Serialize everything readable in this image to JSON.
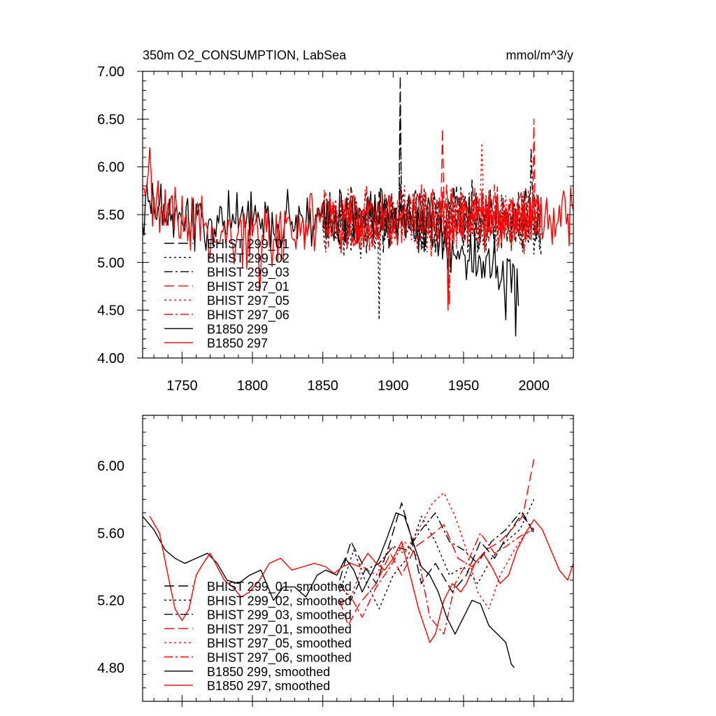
{
  "chart_data": [
    {
      "type": "line",
      "title": "350m O2_CONSUMPTION, LabSea",
      "units": "mmol/m^3/y",
      "xlim": [
        1722,
        2028
      ],
      "ylim": [
        4.0,
        7.0
      ],
      "x_ticks": [
        1750,
        1800,
        1850,
        1900,
        1950,
        2000
      ],
      "x_tick_labels": [
        "1750",
        "1800",
        "1850",
        "1900",
        "1950",
        "2000"
      ],
      "y_ticks": [
        4.0,
        4.5,
        5.0,
        5.5,
        6.0,
        6.5,
        7.0
      ],
      "y_tick_labels": [
        "4.00",
        "4.50",
        "5.00",
        "5.50",
        "6.00",
        "6.50",
        "7.00"
      ],
      "legend_position": "lower-left",
      "series": [
        {
          "name": "BHIST 299_01",
          "color": "#000000",
          "dash": "long",
          "x_start": 1850,
          "x_end": 2005,
          "mean": 5.45,
          "amp": 0.32,
          "peaks": [
            [
              1905,
              6.95
            ]
          ]
        },
        {
          "name": "BHIST 299_02",
          "color": "#000000",
          "dash": "short",
          "x_start": 1850,
          "x_end": 2005,
          "mean": 5.4,
          "amp": 0.32,
          "peaks": [
            [
              1890,
              4.4
            ],
            [
              1905,
              6.65
            ]
          ]
        },
        {
          "name": "BHIST 299_03",
          "color": "#000000",
          "dash": "dashdot",
          "x_start": 1850,
          "x_end": 2005,
          "mean": 5.45,
          "amp": 0.3,
          "peaks": [
            [
              1998,
              6.2
            ]
          ]
        },
        {
          "name": "BHIST 297_01",
          "color": "#ff0000",
          "dash": "long",
          "x_start": 1850,
          "x_end": 2005,
          "mean": 5.5,
          "amp": 0.32,
          "peaks": [
            [
              2000,
              6.5
            ],
            [
              1935,
              6.4
            ]
          ]
        },
        {
          "name": "BHIST 297_05",
          "color": "#ff0000",
          "dash": "short",
          "x_start": 1850,
          "x_end": 2005,
          "mean": 5.45,
          "amp": 0.3,
          "peaks": [
            [
              1963,
              6.25
            ]
          ]
        },
        {
          "name": "BHIST 297_06",
          "color": "#ff0000",
          "dash": "dashdot",
          "x_start": 1850,
          "x_end": 2005,
          "mean": 5.45,
          "amp": 0.3,
          "peaks": [
            [
              1940,
              4.55
            ]
          ]
        },
        {
          "name": "B1850 299",
          "color": "#000000",
          "dash": "solid",
          "x_start": 1722,
          "x_end": 1989,
          "mean": 5.45,
          "amp": 0.3,
          "trend": [
            [
              1722,
              5.55
            ],
            [
              1800,
              5.4
            ],
            [
              1900,
              5.55
            ],
            [
              1950,
              5.1
            ],
            [
              1989,
              4.9
            ]
          ],
          "peaks": [
            [
              1987,
              4.23
            ],
            [
              1980,
              4.4
            ]
          ]
        },
        {
          "name": "B1850 297",
          "color": "#ff0000",
          "dash": "solid",
          "x_start": 1722,
          "x_end": 2028,
          "mean": 5.45,
          "amp": 0.3,
          "trend": [
            [
              1722,
              5.75
            ],
            [
              1780,
              5.2
            ],
            [
              1850,
              5.4
            ],
            [
              1950,
              5.45
            ],
            [
              2028,
              5.5
            ]
          ],
          "peaks": [
            [
              1727,
              6.2
            ],
            [
              1805,
              4.7
            ],
            [
              1939,
              4.5
            ]
          ]
        }
      ]
    },
    {
      "type": "line",
      "title": "",
      "units": "",
      "xlim": [
        1722,
        2028
      ],
      "ylim": [
        4.6,
        6.3
      ],
      "x_ticks": [
        1750,
        1800,
        1850,
        1900,
        1950,
        2000
      ],
      "x_tick_labels": [
        "",
        "",
        "",
        "",
        "",
        ""
      ],
      "y_ticks": [
        4.8,
        5.2,
        5.6,
        6.0
      ],
      "y_tick_labels": [
        "4.80",
        "5.20",
        "5.60",
        "6.00"
      ],
      "legend_position": "lower-left",
      "series": [
        {
          "name": "BHIST 299_01, smoothed",
          "color": "#000000",
          "dash": "long",
          "points": [
            [
              1862,
              5.32
            ],
            [
              1870,
              5.55
            ],
            [
              1878,
              5.42
            ],
            [
              1888,
              5.3
            ],
            [
              1898,
              5.55
            ],
            [
              1906,
              5.78
            ],
            [
              1912,
              5.6
            ],
            [
              1920,
              5.3
            ],
            [
              1930,
              5.42
            ],
            [
              1942,
              5.25
            ],
            [
              1952,
              5.35
            ],
            [
              1962,
              5.55
            ],
            [
              1972,
              5.45
            ],
            [
              1982,
              5.6
            ],
            [
              1992,
              5.72
            ],
            [
              2000,
              5.6
            ]
          ]
        },
        {
          "name": "BHIST 299_02, smoothed",
          "color": "#000000",
          "dash": "short",
          "points": [
            [
              1862,
              5.25
            ],
            [
              1872,
              5.5
            ],
            [
              1880,
              5.32
            ],
            [
              1890,
              5.15
            ],
            [
              1900,
              5.35
            ],
            [
              1910,
              5.45
            ],
            [
              1920,
              5.7
            ],
            [
              1930,
              5.55
            ],
            [
              1940,
              5.35
            ],
            [
              1950,
              5.4
            ],
            [
              1960,
              5.3
            ],
            [
              1970,
              5.45
            ],
            [
              1980,
              5.55
            ],
            [
              1990,
              5.62
            ],
            [
              2000,
              5.8
            ]
          ]
        },
        {
          "name": "BHIST 299_03, smoothed",
          "color": "#000000",
          "dash": "dashdot",
          "points": [
            [
              1862,
              5.3
            ],
            [
              1870,
              5.2
            ],
            [
              1880,
              5.38
            ],
            [
              1890,
              5.42
            ],
            [
              1900,
              5.52
            ],
            [
              1910,
              5.5
            ],
            [
              1920,
              5.62
            ],
            [
              1930,
              5.72
            ],
            [
              1940,
              5.55
            ],
            [
              1950,
              5.5
            ],
            [
              1960,
              5.42
            ],
            [
              1970,
              5.55
            ],
            [
              1980,
              5.62
            ],
            [
              1990,
              5.72
            ],
            [
              2000,
              5.62
            ]
          ]
        },
        {
          "name": "BHIST 297_01, smoothed",
          "color": "#ff0000",
          "dash": "long",
          "points": [
            [
              1862,
              5.2
            ],
            [
              1868,
              5.05
            ],
            [
              1876,
              5.18
            ],
            [
              1888,
              5.3
            ],
            [
              1898,
              5.48
            ],
            [
              1906,
              5.35
            ],
            [
              1916,
              5.52
            ],
            [
              1926,
              5.58
            ],
            [
              1936,
              5.65
            ],
            [
              1946,
              5.45
            ],
            [
              1956,
              5.4
            ],
            [
              1966,
              5.5
            ],
            [
              1976,
              5.55
            ],
            [
              1984,
              5.62
            ],
            [
              1992,
              5.7
            ],
            [
              2000,
              6.04
            ]
          ]
        },
        {
          "name": "BHIST 297_05, smoothed",
          "color": "#ff0000",
          "dash": "short",
          "points": [
            [
              1862,
              5.28
            ],
            [
              1870,
              5.22
            ],
            [
              1878,
              5.4
            ],
            [
              1888,
              5.35
            ],
            [
              1898,
              5.52
            ],
            [
              1908,
              5.48
            ],
            [
              1918,
              5.62
            ],
            [
              1928,
              5.78
            ],
            [
              1936,
              5.84
            ],
            [
              1944,
              5.7
            ],
            [
              1952,
              5.5
            ],
            [
              1960,
              5.25
            ],
            [
              1968,
              5.15
            ],
            [
              1976,
              5.35
            ],
            [
              1986,
              5.5
            ],
            [
              1994,
              5.6
            ],
            [
              2000,
              5.62
            ]
          ]
        },
        {
          "name": "BHIST 297_06, smoothed",
          "color": "#ff0000",
          "dash": "dashdot",
          "points": [
            [
              1862,
              5.18
            ],
            [
              1870,
              5.22
            ],
            [
              1878,
              5.1
            ],
            [
              1888,
              5.28
            ],
            [
              1898,
              5.4
            ],
            [
              1908,
              5.55
            ],
            [
              1918,
              5.45
            ],
            [
              1926,
              5.1
            ],
            [
              1936,
              5.0
            ],
            [
              1944,
              5.3
            ],
            [
              1954,
              5.45
            ],
            [
              1962,
              5.6
            ],
            [
              1972,
              5.48
            ],
            [
              1980,
              5.52
            ],
            [
              1990,
              5.58
            ],
            [
              2000,
              5.62
            ]
          ]
        },
        {
          "name": "B1850 299, smoothed",
          "color": "#000000",
          "dash": "solid",
          "points": [
            [
              1722,
              5.7
            ],
            [
              1730,
              5.62
            ],
            [
              1738,
              5.5
            ],
            [
              1745,
              5.45
            ],
            [
              1752,
              5.42
            ],
            [
              1760,
              5.45
            ],
            [
              1768,
              5.48
            ],
            [
              1775,
              5.42
            ],
            [
              1782,
              5.32
            ],
            [
              1790,
              5.3
            ],
            [
              1798,
              5.35
            ],
            [
              1806,
              5.38
            ],
            [
              1815,
              5.2
            ],
            [
              1822,
              5.28
            ],
            [
              1830,
              5.28
            ],
            [
              1838,
              5.22
            ],
            [
              1846,
              5.35
            ],
            [
              1852,
              5.38
            ],
            [
              1860,
              5.35
            ],
            [
              1866,
              5.45
            ],
            [
              1872,
              5.38
            ],
            [
              1878,
              5.25
            ],
            [
              1884,
              5.35
            ],
            [
              1890,
              5.45
            ],
            [
              1896,
              5.58
            ],
            [
              1902,
              5.72
            ],
            [
              1908,
              5.7
            ],
            [
              1914,
              5.55
            ],
            [
              1920,
              5.4
            ],
            [
              1926,
              5.35
            ],
            [
              1932,
              5.25
            ],
            [
              1938,
              5.1
            ],
            [
              1944,
              5.0
            ],
            [
              1950,
              5.1
            ],
            [
              1956,
              5.2
            ],
            [
              1962,
              5.18
            ],
            [
              1968,
              5.05
            ],
            [
              1974,
              5.0
            ],
            [
              1980,
              4.95
            ],
            [
              1984,
              4.82
            ],
            [
              1986,
              4.8
            ]
          ]
        },
        {
          "name": "B1850 297, smoothed",
          "color": "#ff0000",
          "dash": "solid",
          "points": [
            [
              1727,
              5.7
            ],
            [
              1734,
              5.6
            ],
            [
              1740,
              5.35
            ],
            [
              1745,
              5.15
            ],
            [
              1750,
              5.08
            ],
            [
              1755,
              5.15
            ],
            [
              1760,
              5.35
            ],
            [
              1765,
              5.42
            ],
            [
              1770,
              5.48
            ],
            [
              1775,
              5.4
            ],
            [
              1780,
              5.32
            ],
            [
              1786,
              5.28
            ],
            [
              1792,
              5.22
            ],
            [
              1798,
              5.25
            ],
            [
              1805,
              5.32
            ],
            [
              1812,
              5.42
            ],
            [
              1820,
              5.45
            ],
            [
              1828,
              5.38
            ],
            [
              1836,
              5.4
            ],
            [
              1844,
              5.42
            ],
            [
              1852,
              5.4
            ],
            [
              1858,
              5.36
            ],
            [
              1864,
              5.4
            ],
            [
              1870,
              5.42
            ],
            [
              1876,
              5.4
            ],
            [
              1882,
              5.48
            ],
            [
              1888,
              5.42
            ],
            [
              1894,
              5.38
            ],
            [
              1900,
              5.45
            ],
            [
              1906,
              5.55
            ],
            [
              1912,
              5.35
            ],
            [
              1918,
              5.15
            ],
            [
              1922,
              5.05
            ],
            [
              1926,
              4.95
            ],
            [
              1930,
              5.0
            ],
            [
              1936,
              5.2
            ],
            [
              1942,
              5.3
            ],
            [
              1948,
              5.25
            ],
            [
              1952,
              5.3
            ],
            [
              1958,
              5.42
            ],
            [
              1964,
              5.48
            ],
            [
              1970,
              5.4
            ],
            [
              1976,
              5.3
            ],
            [
              1982,
              5.35
            ],
            [
              1988,
              5.5
            ],
            [
              1994,
              5.6
            ],
            [
              2000,
              5.68
            ],
            [
              2006,
              5.62
            ],
            [
              2012,
              5.5
            ],
            [
              2018,
              5.38
            ],
            [
              2024,
              5.32
            ],
            [
              2028,
              5.42
            ]
          ]
        }
      ]
    }
  ]
}
